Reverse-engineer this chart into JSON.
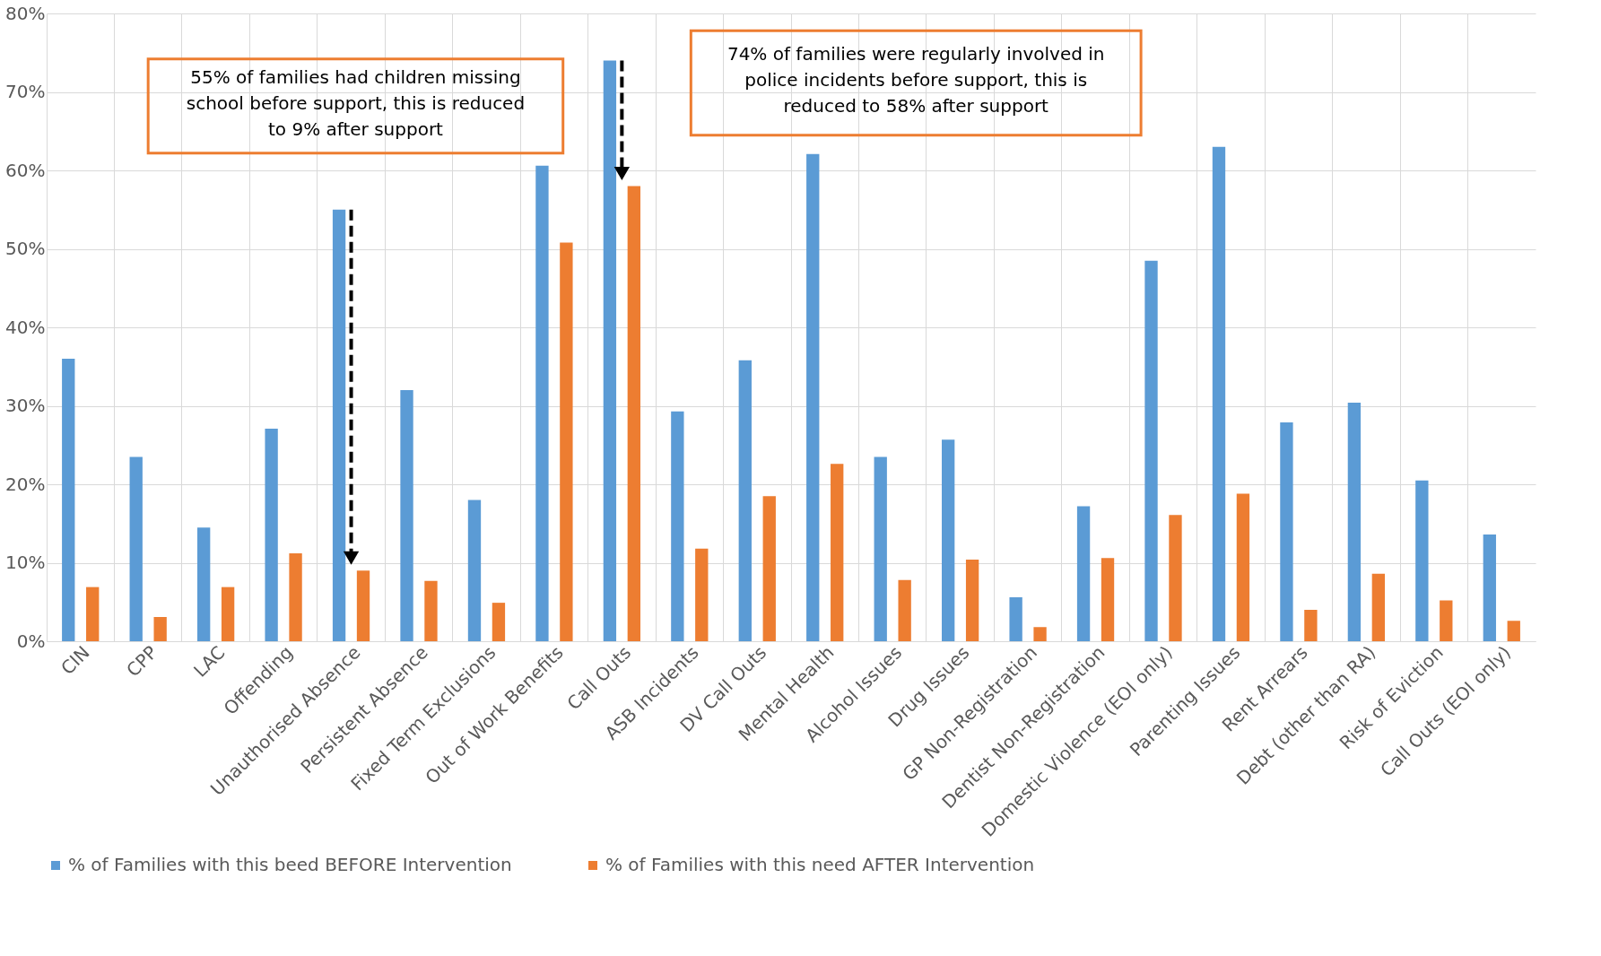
{
  "chart_data": {
    "type": "bar",
    "categories": [
      "CIN",
      "CPP",
      "LAC",
      "Offending",
      "Unauthorised Absence",
      "Persistent Absence",
      "Fixed Term Exclusions",
      "Out of Work Benefits",
      "Call Outs",
      "ASB Incidents",
      "DV Call Outs",
      "Mental Health",
      "Alcohol Issues",
      "Drug Issues",
      "GP Non-Registration",
      "Dentist Non-Registration",
      "Domestic Violence (EOI only)",
      "Parenting Issues",
      "Rent Arrears",
      "Debt (other than RA)",
      "Risk of Eviction",
      "Call Outs (EOI only)"
    ],
    "series": [
      {
        "name": "% of Families with this beed BEFORE Intervention",
        "color": "#5b9bd5",
        "values": [
          36,
          23.5,
          14.5,
          27.1,
          55,
          32,
          18,
          60.6,
          74,
          29.3,
          35.8,
          62.1,
          23.5,
          25.7,
          5.6,
          17.2,
          48.5,
          63,
          27.9,
          30.4,
          20.5,
          13.6
        ]
      },
      {
        "name": "% of Families with this need AFTER Intervention",
        "color": "#ed7d31",
        "values": [
          6.9,
          3.1,
          6.9,
          11.2,
          9,
          7.7,
          4.9,
          50.8,
          58,
          11.8,
          18.5,
          22.6,
          7.8,
          10.4,
          1.8,
          10.6,
          16.1,
          18.8,
          4,
          8.6,
          5.2,
          2.6
        ]
      }
    ],
    "ylim": [
      0,
      80
    ],
    "yticks": [
      {
        "value": 0,
        "label": "0%"
      },
      {
        "value": 10,
        "label": "10%"
      },
      {
        "value": 20,
        "label": "20%"
      },
      {
        "value": 30,
        "label": "30%"
      },
      {
        "value": 40,
        "label": "40%"
      },
      {
        "value": 50,
        "label": "50%"
      },
      {
        "value": 60,
        "label": "60%"
      },
      {
        "value": 70,
        "label": "70%"
      },
      {
        "value": 80,
        "label": "80%"
      }
    ],
    "grid": true,
    "legend": "bottom",
    "annotations": [
      "55% of families had children missing\nschool before support, this is reduced\nto 9% after support",
      "74% of families were regularly involved in\npolice incidents before support, this is\nreduced to 58% after support"
    ]
  }
}
